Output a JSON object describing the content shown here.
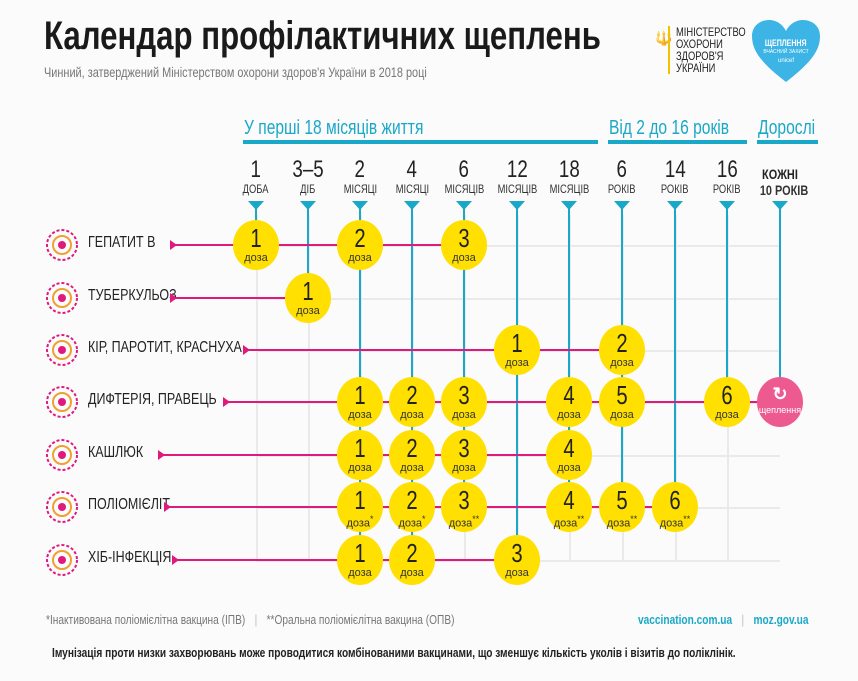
{
  "header": {
    "title": "Календар профілактичних щеплень",
    "subtitle": "Чинний, затверджений Міністерством охорони здоров'я України в 2018 році",
    "ministry_lines": [
      "МІНІСТЕРСТВО",
      "ОХОРОНИ",
      "ЗДОРОВ'Я",
      "УКРАЇНИ"
    ],
    "logo_text": [
      "ЩЕПЛЕННЯ",
      "ВЧАСНИЙ ЗАХИСТ",
      "unicef"
    ]
  },
  "colors": {
    "accent": "#1aa8c8",
    "dose": "#ffe000",
    "line": "#e0197d",
    "adult": "#ec5a8f"
  },
  "sections": [
    {
      "label": "У перші 18 місяців життя"
    },
    {
      "label": "Від 2 до 16 років"
    },
    {
      "label": "Дорослі"
    }
  ],
  "columns": [
    {
      "num": "1",
      "unit": "ДОБА"
    },
    {
      "num": "3–5",
      "unit": "ДІБ"
    },
    {
      "num": "2",
      "unit": "МІСЯЦІ"
    },
    {
      "num": "4",
      "unit": "МІСЯЦІ"
    },
    {
      "num": "6",
      "unit": "МІСЯЦІВ"
    },
    {
      "num": "12",
      "unit": "МІСЯЦІВ"
    },
    {
      "num": "18",
      "unit": "МІСЯЦІВ"
    },
    {
      "num": "6",
      "unit": "РОКІВ"
    },
    {
      "num": "14",
      "unit": "РОКІВ"
    },
    {
      "num": "16",
      "unit": "РОКІВ"
    },
    {
      "num": "КОЖНІ",
      "unit": "10 РОКІВ"
    }
  ],
  "dose_unit": "доза",
  "adult_label": "щеплення",
  "rows": [
    {
      "name": "ГЕПАТИТ В",
      "icon": "hepatitis-virus-icon",
      "doses": [
        {
          "col": 0,
          "n": "1",
          "mark": ""
        },
        {
          "col": 2,
          "n": "2",
          "mark": ""
        },
        {
          "col": 4,
          "n": "3",
          "mark": ""
        }
      ]
    },
    {
      "name": "ТУБЕРКУЛЬОЗ",
      "icon": "bacillus-icon",
      "doses": [
        {
          "col": 1,
          "n": "1",
          "mark": ""
        }
      ]
    },
    {
      "name": "КІР, ПАРОТИТ, КРАСНУХА",
      "icon": "measles-virus-icon",
      "doses": [
        {
          "col": 5,
          "n": "1",
          "mark": ""
        },
        {
          "col": 7,
          "n": "2",
          "mark": ""
        }
      ]
    },
    {
      "name": "ДИФТЕРІЯ, ПРАВЕЦЬ",
      "icon": "diphtheria-bacteria-icon",
      "doses": [
        {
          "col": 2,
          "n": "1",
          "mark": ""
        },
        {
          "col": 3,
          "n": "2",
          "mark": ""
        },
        {
          "col": 4,
          "n": "3",
          "mark": ""
        },
        {
          "col": 6,
          "n": "4",
          "mark": ""
        },
        {
          "col": 7,
          "n": "5",
          "mark": ""
        },
        {
          "col": 9,
          "n": "6",
          "mark": ""
        }
      ],
      "adult": true
    },
    {
      "name": "КАШЛЮК",
      "icon": "pertussis-bacteria-icon",
      "doses": [
        {
          "col": 2,
          "n": "1",
          "mark": ""
        },
        {
          "col": 3,
          "n": "2",
          "mark": ""
        },
        {
          "col": 4,
          "n": "3",
          "mark": ""
        },
        {
          "col": 6,
          "n": "4",
          "mark": ""
        }
      ]
    },
    {
      "name": "ПОЛІОМІЄЛІТ",
      "icon": "polio-virus-icon",
      "doses": [
        {
          "col": 2,
          "n": "1",
          "mark": "*"
        },
        {
          "col": 3,
          "n": "2",
          "mark": "*"
        },
        {
          "col": 4,
          "n": "3",
          "mark": "**"
        },
        {
          "col": 6,
          "n": "4",
          "mark": "**"
        },
        {
          "col": 7,
          "n": "5",
          "mark": "**"
        },
        {
          "col": 8,
          "n": "6",
          "mark": "**"
        }
      ]
    },
    {
      "name": "ХІБ-ІНФЕКЦІЯ",
      "icon": "hib-bacteria-icon",
      "doses": [
        {
          "col": 2,
          "n": "1",
          "mark": ""
        },
        {
          "col": 3,
          "n": "2",
          "mark": ""
        },
        {
          "col": 5,
          "n": "3",
          "mark": ""
        }
      ]
    }
  ],
  "footer": {
    "note_ipv": "*Інактивована поліомієлітна вакцина (ІПВ)",
    "note_opv": "**Оральна поліомієлітна вакцина (ОПВ)",
    "link1": "vaccination.com.ua",
    "link2": "moz.gov.ua",
    "bottom_note": "Імунізація проти низки захворювань може проводитися комбінованими вакцинами, що зменшує кількість уколів і візитів до поліклінік."
  }
}
